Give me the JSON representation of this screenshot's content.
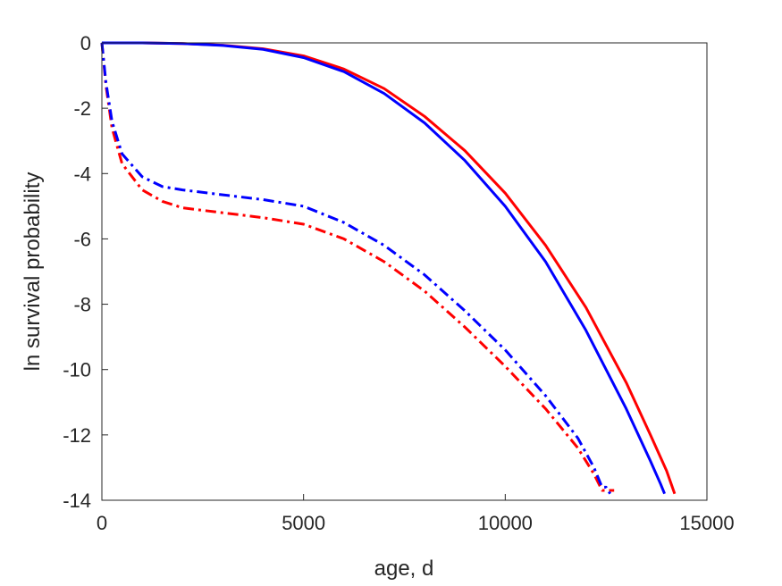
{
  "chart_data": {
    "type": "line",
    "title": "",
    "xlabel": "age, d",
    "ylabel": "ln survival probability",
    "xlim": [
      0,
      15000
    ],
    "ylim": [
      -14,
      0
    ],
    "xticks": [
      0,
      5000,
      10000,
      15000
    ],
    "yticks": [
      0,
      -2,
      -4,
      -6,
      -8,
      -10,
      -12,
      -14
    ],
    "grid": false,
    "legend": "none",
    "series": [
      {
        "color": "#ff0000",
        "style": "solid",
        "points": [
          [
            0,
            0
          ],
          [
            1000,
            0
          ],
          [
            2000,
            -0.02
          ],
          [
            3000,
            -0.07
          ],
          [
            4000,
            -0.18
          ],
          [
            5000,
            -0.4
          ],
          [
            6000,
            -0.8
          ],
          [
            7000,
            -1.4
          ],
          [
            8000,
            -2.25
          ],
          [
            9000,
            -3.3
          ],
          [
            10000,
            -4.6
          ],
          [
            11000,
            -6.2
          ],
          [
            12000,
            -8.1
          ],
          [
            13000,
            -10.4
          ],
          [
            13600,
            -12.0
          ],
          [
            14000,
            -13.1
          ],
          [
            14200,
            -13.8
          ]
        ]
      },
      {
        "color": "#0000ff",
        "style": "solid",
        "points": [
          [
            0,
            0
          ],
          [
            1000,
            0
          ],
          [
            2000,
            -0.02
          ],
          [
            3000,
            -0.08
          ],
          [
            4000,
            -0.2
          ],
          [
            5000,
            -0.45
          ],
          [
            6000,
            -0.88
          ],
          [
            7000,
            -1.55
          ],
          [
            8000,
            -2.45
          ],
          [
            9000,
            -3.6
          ],
          [
            10000,
            -5.0
          ],
          [
            11000,
            -6.7
          ],
          [
            12000,
            -8.8
          ],
          [
            13000,
            -11.2
          ],
          [
            13600,
            -12.8
          ],
          [
            13850,
            -13.5
          ],
          [
            13950,
            -13.8
          ]
        ]
      },
      {
        "color": "#ff0000",
        "style": "dashdot",
        "points": [
          [
            0,
            0
          ],
          [
            100,
            -1.3
          ],
          [
            250,
            -2.6
          ],
          [
            500,
            -3.7
          ],
          [
            1000,
            -4.5
          ],
          [
            1500,
            -4.85
          ],
          [
            2000,
            -5.05
          ],
          [
            3000,
            -5.2
          ],
          [
            4000,
            -5.35
          ],
          [
            5000,
            -5.55
          ],
          [
            6000,
            -6.0
          ],
          [
            7000,
            -6.7
          ],
          [
            8000,
            -7.6
          ],
          [
            9000,
            -8.7
          ],
          [
            10000,
            -9.9
          ],
          [
            11000,
            -11.2
          ],
          [
            11800,
            -12.4
          ],
          [
            12200,
            -13.2
          ],
          [
            12400,
            -13.7
          ],
          [
            12700,
            -13.7
          ]
        ]
      },
      {
        "color": "#0000ff",
        "style": "dashdot",
        "points": [
          [
            0,
            0
          ],
          [
            100,
            -1.2
          ],
          [
            250,
            -2.4
          ],
          [
            500,
            -3.4
          ],
          [
            1000,
            -4.1
          ],
          [
            1500,
            -4.4
          ],
          [
            2000,
            -4.5
          ],
          [
            3000,
            -4.65
          ],
          [
            4000,
            -4.8
          ],
          [
            5000,
            -5.0
          ],
          [
            6000,
            -5.5
          ],
          [
            7000,
            -6.2
          ],
          [
            8000,
            -7.1
          ],
          [
            9000,
            -8.2
          ],
          [
            10000,
            -9.4
          ],
          [
            11000,
            -10.8
          ],
          [
            11800,
            -12.1
          ],
          [
            12200,
            -13.0
          ],
          [
            12400,
            -13.6
          ],
          [
            12500,
            -13.6
          ],
          [
            12600,
            -13.8
          ]
        ]
      }
    ]
  }
}
